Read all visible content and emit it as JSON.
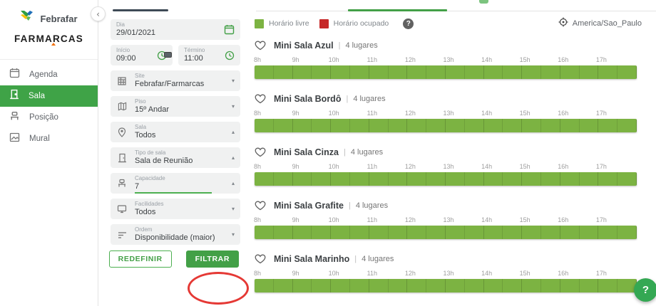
{
  "sidebar": {
    "brand": {
      "logo_text": "Febrafar",
      "brand_name": "FARMARCAS"
    },
    "items": [
      {
        "label": "Agenda",
        "icon": "calendar-icon",
        "active": false
      },
      {
        "label": "Sala",
        "icon": "door-icon",
        "active": true
      },
      {
        "label": "Posição",
        "icon": "desk-icon",
        "active": false
      },
      {
        "label": "Mural",
        "icon": "picture-icon",
        "active": false
      }
    ],
    "collapse_glyph": "‹"
  },
  "filters": {
    "dia": {
      "label": "Dia",
      "value": "29/01/2021"
    },
    "inicio": {
      "label": "Início",
      "value": "09:00"
    },
    "termino": {
      "label": "Término",
      "value": "11:00"
    },
    "site": {
      "label": "Site",
      "value": "Febrafar/Farmarcas",
      "chevron": "▾"
    },
    "piso": {
      "label": "Piso",
      "value": "15º Andar",
      "chevron": "▾"
    },
    "sala": {
      "label": "Sala",
      "value": "Todos",
      "chevron": "▴"
    },
    "tipo": {
      "label": "Tipo de sala",
      "value": "Sala de Reunião",
      "chevron": "▴"
    },
    "capacidade": {
      "label": "Capacidade",
      "value": "7",
      "chevron": "▴"
    },
    "facilidades": {
      "label": "Facilidades",
      "value": "Todos",
      "chevron": "▾"
    },
    "ordem": {
      "label": "Ordem",
      "value": "Disponibilidade (maior)",
      "chevron": "▾"
    },
    "redefinir_label": "REDEFINIR",
    "filtrar_label": "FILTRAR"
  },
  "legend": {
    "free_label": "Horário livre",
    "busy_label": "Horário ocupado",
    "free_color": "#7CB342",
    "busy_color": "#C62828",
    "help_glyph": "?"
  },
  "timezone_label": "America/Sao_Paulo",
  "help_fab_glyph": "?",
  "rooms": {
    "hour_labels": [
      "8h",
      "9h",
      "10h",
      "11h",
      "12h",
      "13h",
      "14h",
      "15h",
      "16h",
      "17h"
    ],
    "slot_minutes": 30,
    "slots_per_room": 20,
    "separator": "|",
    "items": [
      {
        "name": "Mini Sala Azul",
        "capacity": "4 lugares",
        "availability": "all-free"
      },
      {
        "name": "Mini Sala Bordô",
        "capacity": "4 lugares",
        "availability": "all-free"
      },
      {
        "name": "Mini Sala Cinza",
        "capacity": "4 lugares",
        "availability": "all-free"
      },
      {
        "name": "Mini Sala Grafite",
        "capacity": "4 lugares",
        "availability": "all-free"
      },
      {
        "name": "Mini Sala Marinho",
        "capacity": "4 lugares",
        "availability": "all-free"
      }
    ]
  }
}
